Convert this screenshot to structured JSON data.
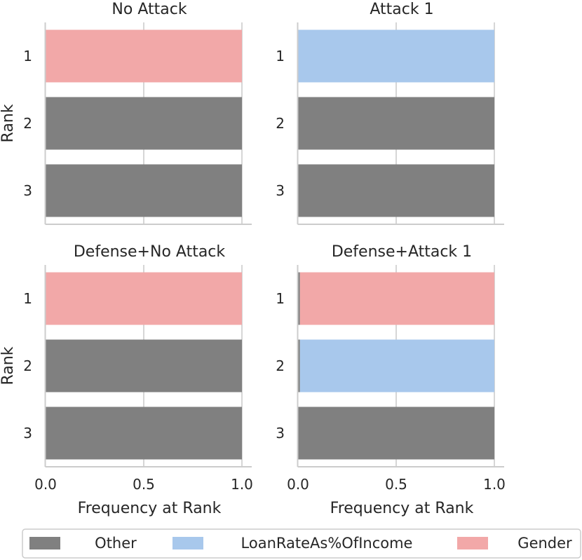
{
  "colors": {
    "Other": "#808080",
    "LoanRateAs%OfIncome": "#a8c8ec",
    "Gender": "#f2a8a8",
    "axis": "#cccccc",
    "grid": "#cccccc",
    "text": "#262626"
  },
  "chart_data": [
    {
      "type": "bar",
      "orientation": "horizontal",
      "title": "No Attack",
      "xlabel": "",
      "ylabel": "Rank",
      "categories": [
        "1",
        "2",
        "3"
      ],
      "xlim": [
        0,
        1
      ],
      "xticks": [],
      "bars": [
        {
          "rank": "1",
          "segments": [
            {
              "feature": "Gender",
              "value": 1.0
            }
          ]
        },
        {
          "rank": "2",
          "segments": [
            {
              "feature": "Other",
              "value": 1.0
            }
          ]
        },
        {
          "rank": "3",
          "segments": [
            {
              "feature": "Other",
              "value": 1.0
            }
          ]
        }
      ]
    },
    {
      "type": "bar",
      "orientation": "horizontal",
      "title": "Attack 1",
      "xlabel": "",
      "ylabel": "",
      "categories": [
        "1",
        "2",
        "3"
      ],
      "xlim": [
        0,
        1
      ],
      "xticks": [],
      "bars": [
        {
          "rank": "1",
          "segments": [
            {
              "feature": "LoanRateAs%OfIncome",
              "value": 1.0
            }
          ]
        },
        {
          "rank": "2",
          "segments": [
            {
              "feature": "Other",
              "value": 1.0
            }
          ]
        },
        {
          "rank": "3",
          "segments": [
            {
              "feature": "Other",
              "value": 1.0
            }
          ]
        }
      ]
    },
    {
      "type": "bar",
      "orientation": "horizontal",
      "title": "Defense+No Attack",
      "xlabel": "Frequency at Rank",
      "ylabel": "Rank",
      "categories": [
        "1",
        "2",
        "3"
      ],
      "xlim": [
        0,
        1
      ],
      "xticks": [
        "0.0",
        "0.5",
        "1.0"
      ],
      "bars": [
        {
          "rank": "1",
          "segments": [
            {
              "feature": "Gender",
              "value": 1.0
            }
          ]
        },
        {
          "rank": "2",
          "segments": [
            {
              "feature": "Other",
              "value": 1.0
            }
          ]
        },
        {
          "rank": "3",
          "segments": [
            {
              "feature": "Other",
              "value": 1.0
            }
          ]
        }
      ]
    },
    {
      "type": "bar",
      "orientation": "horizontal",
      "title": "Defense+Attack 1",
      "xlabel": "Frequency at Rank",
      "ylabel": "",
      "categories": [
        "1",
        "2",
        "3"
      ],
      "xlim": [
        0,
        1
      ],
      "xticks": [
        "0.0",
        "0.5",
        "1.0"
      ],
      "bars": [
        {
          "rank": "1",
          "segments": [
            {
              "feature": "Other",
              "value": 0.01
            },
            {
              "feature": "Gender",
              "value": 0.99
            }
          ]
        },
        {
          "rank": "2",
          "segments": [
            {
              "feature": "Other",
              "value": 0.01
            },
            {
              "feature": "LoanRateAs%OfIncome",
              "value": 0.99
            }
          ]
        },
        {
          "rank": "3",
          "segments": [
            {
              "feature": "Other",
              "value": 1.0
            }
          ]
        }
      ]
    }
  ],
  "legend": {
    "placement": "bottom",
    "items": [
      {
        "label": "Other",
        "color_key": "Other"
      },
      {
        "label": "LoanRateAs%OfIncome",
        "color_key": "LoanRateAs%OfIncome"
      },
      {
        "label": "Gender",
        "color_key": "Gender"
      }
    ]
  }
}
